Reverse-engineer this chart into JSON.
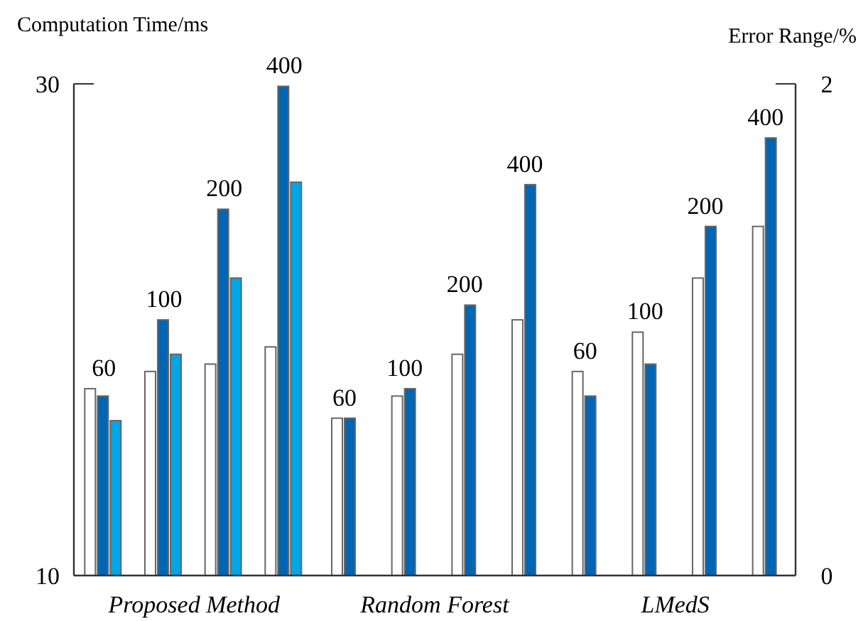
{
  "chart_data": {
    "type": "bar",
    "ylabel": "Computation Time/ms",
    "y2label": "Error Range/%",
    "categories": [
      null,
      null,
      null,
      null,
      null,
      null,
      null,
      null,
      null,
      null,
      null,
      null
    ],
    "series": [
      {
        "color": "#ffffff",
        "values": [
          17.6,
          18.3,
          18.6,
          19.3,
          16.4,
          17.3,
          19.0,
          20.4,
          18.3,
          19.9,
          22.1,
          24.2
        ]
      },
      {
        "color": "#0066b3",
        "axis": "y2",
        "values": [
          0.73,
          1.04,
          1.49,
          1.99,
          0.64,
          0.76,
          1.1,
          1.59,
          0.73,
          0.86,
          1.42,
          1.78
        ]
      },
      {
        "color": "#00a6e6",
        "axis": "y2",
        "values": [
          0.63,
          0.9,
          1.21,
          1.6,
          null,
          null,
          null,
          null,
          null,
          null,
          null,
          null
        ]
      }
    ],
    "ylim": [
      10,
      30
    ],
    "yticks": [
      10,
      30
    ],
    "y2lim": [
      0,
      2
    ],
    "y2ticks": [
      0,
      2
    ],
    "annotations": [
      "Proposed Method",
      "Random Forest",
      "LMedS",
      "60",
      "100",
      "200",
      "400",
      "60",
      "100",
      "200",
      "400",
      "60",
      "100",
      "200",
      "400"
    ],
    "grid": false,
    "legend": false
  }
}
